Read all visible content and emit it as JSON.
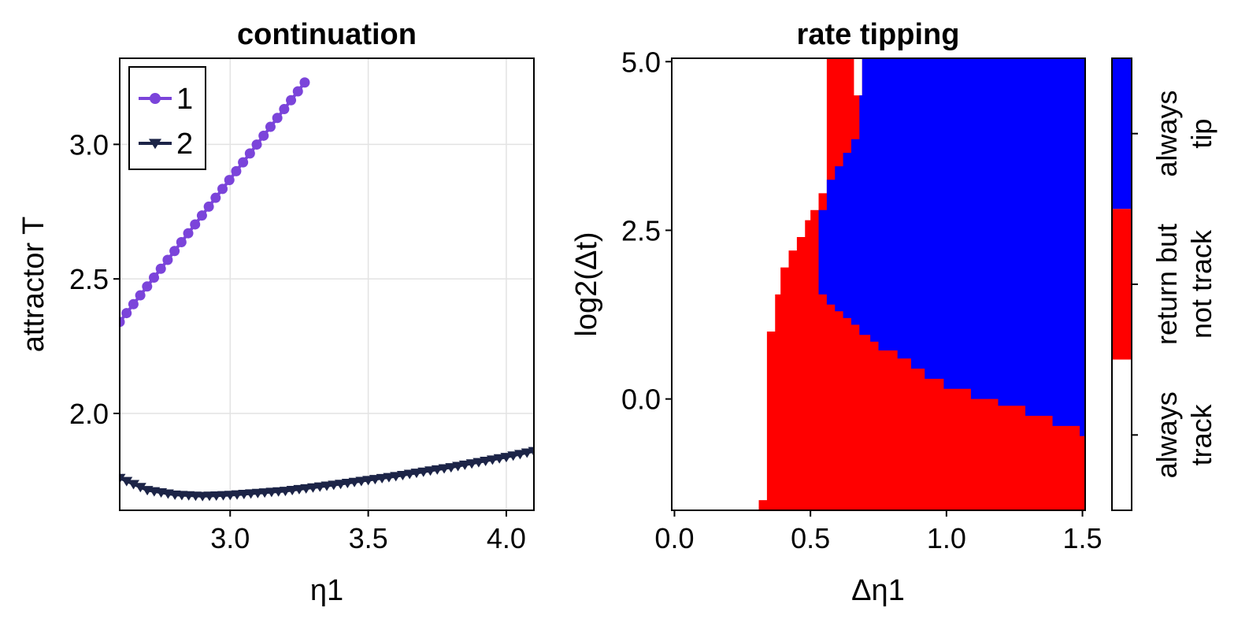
{
  "chart_data": [
    {
      "type": "line",
      "title": "continuation",
      "xlabel": "η1",
      "ylabel": "attractor T",
      "xlim": [
        2.6,
        4.1
      ],
      "ylim": [
        1.64,
        3.32
      ],
      "xticks": [
        3.0,
        3.5,
        4.0
      ],
      "yticks": [
        2.0,
        2.5,
        3.0
      ],
      "xtick_labels": [
        "3.0",
        "3.5",
        "4.0"
      ],
      "ytick_labels": [
        "2.0",
        "2.5",
        "3.0"
      ],
      "grid": true,
      "legend": {
        "placement": "top-left",
        "entries": [
          "1",
          "2"
        ]
      },
      "series": [
        {
          "name": "1",
          "color": "#7B44DA",
          "marker": "circle",
          "x_start": 2.6,
          "x_end": 3.27,
          "count": 28,
          "y_start": 2.34,
          "y_end": 3.23
        },
        {
          "name": "2",
          "color": "#1C2447",
          "marker": "triangle-down",
          "x_start": 2.6,
          "x_end": 4.1,
          "count": 61,
          "curve": [
            [
              2.6,
              1.76
            ],
            [
              2.7,
              1.715
            ],
            [
              2.8,
              1.698
            ],
            [
              2.9,
              1.693
            ],
            [
              3.0,
              1.697
            ],
            [
              3.2,
              1.712
            ],
            [
              3.4,
              1.738
            ],
            [
              3.6,
              1.767
            ],
            [
              3.8,
              1.8
            ],
            [
              4.0,
              1.838
            ],
            [
              4.1,
              1.86
            ]
          ]
        }
      ]
    },
    {
      "type": "heatmap",
      "title": "rate tipping",
      "xlabel": "Δη1",
      "ylabel": "log2(Δt)",
      "xlim": [
        -0.01,
        1.51
      ],
      "ylim": [
        -1.65,
        5.05
      ],
      "xticks": [
        0.0,
        0.5,
        1.0,
        1.5
      ],
      "yticks": [
        0.0,
        2.5,
        5.0
      ],
      "xtick_labels": [
        "0.0",
        "0.5",
        "1.0",
        "1.5"
      ],
      "ytick_labels": [
        "0.0",
        "2.5",
        "5.0"
      ],
      "categories": [
        "always track",
        "return but not track",
        "always tip"
      ],
      "colors": [
        "#ffffff",
        "#ff0000",
        "#0000ff"
      ],
      "red_boundary": [
        [
          0.31,
          -1.5
        ],
        [
          0.34,
          -1.5
        ],
        [
          0.34,
          1.0
        ],
        [
          0.37,
          1.0
        ],
        [
          0.37,
          1.55
        ],
        [
          0.39,
          1.55
        ],
        [
          0.39,
          1.95
        ],
        [
          0.42,
          1.95
        ],
        [
          0.42,
          2.2
        ],
        [
          0.45,
          2.2
        ],
        [
          0.45,
          2.4
        ],
        [
          0.48,
          2.4
        ],
        [
          0.48,
          2.65
        ],
        [
          0.5,
          2.65
        ],
        [
          0.5,
          2.8
        ],
        [
          0.53,
          2.8
        ],
        [
          0.53,
          3.05
        ],
        [
          0.56,
          3.05
        ],
        [
          0.56,
          5.05
        ],
        [
          0.66,
          5.05
        ],
        [
          0.66,
          4.5
        ],
        [
          0.69,
          4.5
        ],
        [
          0.69,
          5.05
        ],
        [
          0.72,
          5.05
        ],
        [
          0.72,
          1.0
        ]
      ],
      "blue_boundary": [
        [
          0.53,
          1.55
        ],
        [
          0.56,
          1.55
        ],
        [
          0.56,
          1.4
        ],
        [
          0.59,
          1.4
        ],
        [
          0.59,
          1.3
        ],
        [
          0.62,
          1.3
        ],
        [
          0.62,
          1.2
        ],
        [
          0.65,
          1.2
        ],
        [
          0.65,
          1.1
        ],
        [
          0.68,
          1.1
        ],
        [
          0.68,
          0.95
        ],
        [
          0.72,
          0.95
        ],
        [
          0.72,
          0.85
        ],
        [
          0.75,
          0.85
        ],
        [
          0.75,
          0.72
        ],
        [
          0.82,
          0.72
        ],
        [
          0.82,
          0.6
        ],
        [
          0.87,
          0.6
        ],
        [
          0.87,
          0.45
        ],
        [
          0.92,
          0.45
        ],
        [
          0.92,
          0.3
        ],
        [
          0.99,
          0.3
        ],
        [
          0.99,
          0.15
        ],
        [
          1.09,
          0.15
        ],
        [
          1.09,
          0.0
        ],
        [
          1.19,
          0.0
        ],
        [
          1.19,
          -0.1
        ],
        [
          1.29,
          -0.1
        ],
        [
          1.29,
          -0.25
        ],
        [
          1.39,
          -0.25
        ],
        [
          1.39,
          -0.4
        ],
        [
          1.49,
          -0.4
        ],
        [
          1.49,
          -0.55
        ],
        [
          1.51,
          -0.55
        ]
      ],
      "blue_left_edge": [
        [
          0.56,
          3.05
        ],
        [
          0.56,
          3.25
        ],
        [
          0.59,
          3.25
        ],
        [
          0.59,
          3.45
        ],
        [
          0.62,
          3.45
        ],
        [
          0.62,
          3.65
        ],
        [
          0.65,
          3.65
        ],
        [
          0.65,
          3.85
        ],
        [
          0.68,
          3.85
        ],
        [
          0.68,
          4.5
        ],
        [
          0.69,
          4.5
        ],
        [
          0.69,
          5.05
        ]
      ],
      "colorbar": {
        "labels": [
          [
            "always",
            "track"
          ],
          [
            "return but",
            "not track"
          ],
          [
            "always",
            "tip"
          ]
        ]
      }
    }
  ]
}
